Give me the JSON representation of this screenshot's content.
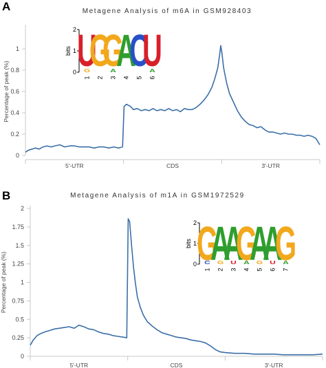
{
  "panels": [
    {
      "letter": "A",
      "chart_data": {
        "type": "line",
        "title": "Metagene Analysis of m6A in GSM928403",
        "ylabel": "Percentage of peak (%)",
        "xlabel": "",
        "ylim": [
          0,
          1.2
        ],
        "xlim": [
          0,
          3
        ],
        "yticks": [
          0,
          0.2,
          0.4,
          0.6,
          0.8,
          1
        ],
        "ytick_labels": [
          "0",
          "0.2",
          "0.4",
          "0.6",
          "0.8",
          "1"
        ],
        "region_labels": [
          "5'-UTR",
          "CDS",
          "3'-UTR"
        ],
        "grid": false,
        "series": [
          {
            "color": "#3a6fa8",
            "points": [
              [
                0,
                0.03
              ],
              [
                0.03,
                0.05
              ],
              [
                0.07,
                0.06
              ],
              [
                0.1,
                0.07
              ],
              [
                0.14,
                0.06
              ],
              [
                0.18,
                0.08
              ],
              [
                0.22,
                0.09
              ],
              [
                0.26,
                0.08
              ],
              [
                0.3,
                0.09
              ],
              [
                0.35,
                0.1
              ],
              [
                0.4,
                0.08
              ],
              [
                0.45,
                0.09
              ],
              [
                0.5,
                0.09
              ],
              [
                0.55,
                0.08
              ],
              [
                0.6,
                0.08
              ],
              [
                0.65,
                0.08
              ],
              [
                0.7,
                0.07
              ],
              [
                0.75,
                0.08
              ],
              [
                0.8,
                0.08
              ],
              [
                0.85,
                0.07
              ],
              [
                0.9,
                0.08
              ],
              [
                0.95,
                0.07
              ],
              [
                0.99,
                0.08
              ],
              [
                1.005,
                0.46
              ],
              [
                1.03,
                0.48
              ],
              [
                1.07,
                0.46
              ],
              [
                1.1,
                0.43
              ],
              [
                1.14,
                0.44
              ],
              [
                1.18,
                0.42
              ],
              [
                1.22,
                0.43
              ],
              [
                1.26,
                0.42
              ],
              [
                1.3,
                0.44
              ],
              [
                1.34,
                0.42
              ],
              [
                1.38,
                0.43
              ],
              [
                1.42,
                0.42
              ],
              [
                1.46,
                0.44
              ],
              [
                1.5,
                0.42
              ],
              [
                1.54,
                0.43
              ],
              [
                1.58,
                0.41
              ],
              [
                1.62,
                0.44
              ],
              [
                1.66,
                0.43
              ],
              [
                1.7,
                0.43
              ],
              [
                1.74,
                0.45
              ],
              [
                1.78,
                0.48
              ],
              [
                1.82,
                0.52
              ],
              [
                1.86,
                0.57
              ],
              [
                1.9,
                0.64
              ],
              [
                1.93,
                0.72
              ],
              [
                1.96,
                0.82
              ],
              [
                1.98,
                0.95
              ],
              [
                1.99,
                1.03
              ],
              [
                2.0,
                0.98
              ],
              [
                2.02,
                0.82
              ],
              [
                2.05,
                0.68
              ],
              [
                2.08,
                0.58
              ],
              [
                2.12,
                0.5
              ],
              [
                2.16,
                0.42
              ],
              [
                2.2,
                0.36
              ],
              [
                2.24,
                0.32
              ],
              [
                2.28,
                0.29
              ],
              [
                2.32,
                0.28
              ],
              [
                2.36,
                0.26
              ],
              [
                2.4,
                0.27
              ],
              [
                2.44,
                0.24
              ],
              [
                2.48,
                0.22
              ],
              [
                2.52,
                0.22
              ],
              [
                2.56,
                0.21
              ],
              [
                2.6,
                0.2
              ],
              [
                2.64,
                0.21
              ],
              [
                2.68,
                0.2
              ],
              [
                2.72,
                0.2
              ],
              [
                2.76,
                0.19
              ],
              [
                2.8,
                0.19
              ],
              [
                2.84,
                0.18
              ],
              [
                2.88,
                0.19
              ],
              [
                2.92,
                0.18
              ],
              [
                2.96,
                0.16
              ],
              [
                3.0,
                0.1
              ]
            ]
          }
        ]
      },
      "motif": {
        "axis_label": "bits",
        "ylim": [
          0,
          2
        ],
        "yticks": [
          "0",
          "1",
          "2"
        ],
        "positions": [
          "1",
          "2",
          "3",
          "4",
          "5",
          "6"
        ],
        "letters": [
          "U",
          "G",
          "G",
          "A",
          "C",
          "U"
        ],
        "minor_letters": [
          "G",
          "",
          "A",
          "",
          "",
          "A"
        ]
      }
    },
    {
      "letter": "B",
      "chart_data": {
        "type": "line",
        "title": "Metagene Analysis of m1A in GSM1972529",
        "ylabel": "Percentage of peak (%)",
        "xlabel": "",
        "ylim": [
          0,
          2
        ],
        "xlim": [
          0,
          3
        ],
        "yticks": [
          0,
          0.25,
          0.5,
          0.75,
          1,
          1.25,
          1.5,
          1.75,
          2
        ],
        "ytick_labels": [
          "0",
          "0.25",
          "0.5",
          "0.75",
          "1",
          "1.25",
          "1.5",
          "1.75",
          "2"
        ],
        "region_labels": [
          "5'-UTR",
          "CDS",
          "3'-UTR"
        ],
        "grid": false,
        "series": [
          {
            "color": "#3a6fa8",
            "points": [
              [
                0,
                0.15
              ],
              [
                0.03,
                0.22
              ],
              [
                0.07,
                0.28
              ],
              [
                0.11,
                0.31
              ],
              [
                0.15,
                0.33
              ],
              [
                0.2,
                0.35
              ],
              [
                0.25,
                0.37
              ],
              [
                0.3,
                0.38
              ],
              [
                0.35,
                0.39
              ],
              [
                0.4,
                0.4
              ],
              [
                0.45,
                0.38
              ],
              [
                0.5,
                0.42
              ],
              [
                0.55,
                0.4
              ],
              [
                0.6,
                0.37
              ],
              [
                0.65,
                0.36
              ],
              [
                0.7,
                0.33
              ],
              [
                0.75,
                0.31
              ],
              [
                0.8,
                0.3
              ],
              [
                0.85,
                0.28
              ],
              [
                0.9,
                0.27
              ],
              [
                0.95,
                0.26
              ],
              [
                0.99,
                0.25
              ],
              [
                1.005,
                1.86
              ],
              [
                1.02,
                1.82
              ],
              [
                1.04,
                1.5
              ],
              [
                1.06,
                1.2
              ],
              [
                1.08,
                0.98
              ],
              [
                1.1,
                0.8
              ],
              [
                1.13,
                0.66
              ],
              [
                1.16,
                0.56
              ],
              [
                1.2,
                0.47
              ],
              [
                1.25,
                0.41
              ],
              [
                1.3,
                0.36
              ],
              [
                1.35,
                0.32
              ],
              [
                1.4,
                0.3
              ],
              [
                1.45,
                0.28
              ],
              [
                1.5,
                0.26
              ],
              [
                1.55,
                0.25
              ],
              [
                1.6,
                0.24
              ],
              [
                1.65,
                0.22
              ],
              [
                1.7,
                0.21
              ],
              [
                1.75,
                0.2
              ],
              [
                1.8,
                0.18
              ],
              [
                1.85,
                0.14
              ],
              [
                1.9,
                0.09
              ],
              [
                1.95,
                0.06
              ],
              [
                2.0,
                0.05
              ],
              [
                2.1,
                0.04
              ],
              [
                2.2,
                0.04
              ],
              [
                2.3,
                0.03
              ],
              [
                2.4,
                0.03
              ],
              [
                2.5,
                0.03
              ],
              [
                2.6,
                0.02
              ],
              [
                2.7,
                0.02
              ],
              [
                2.8,
                0.02
              ],
              [
                2.9,
                0.02
              ],
              [
                3.0,
                0.03
              ]
            ]
          }
        ]
      },
      "motif": {
        "axis_label": "bits",
        "ylim": [
          0,
          2
        ],
        "yticks": [
          "0",
          "1",
          "2"
        ],
        "positions": [
          "1",
          "2",
          "3",
          "4",
          "5",
          "6",
          "7"
        ],
        "letters": [
          "G",
          "A",
          "A",
          "G",
          "A",
          "A",
          "G"
        ],
        "minor_letters": [
          "C",
          "G",
          "U",
          "A",
          "G",
          "U",
          "A"
        ]
      }
    }
  ],
  "colors": {
    "line": "#3a6fa8",
    "axis": "#c8c8c8",
    "tick_text": "#444444",
    "title_text": "#333333",
    "nucleotide_A": "#2e9e2e",
    "nucleotide_C": "#2850c8",
    "nucleotide_G": "#f2a81c",
    "nucleotide_U": "#d8202a"
  }
}
